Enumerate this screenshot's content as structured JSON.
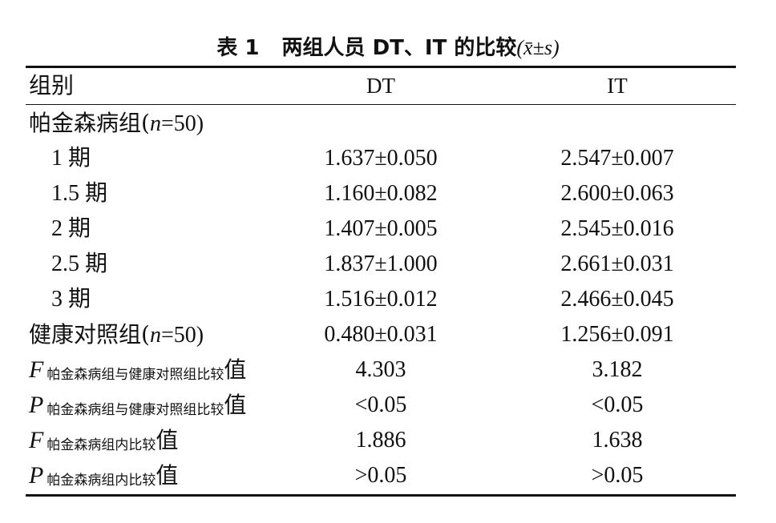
{
  "caption": {
    "number": "表 1",
    "title": "两组人员 DT、IT 的比较",
    "stat": "(x̄±s)"
  },
  "header": {
    "group": "组别",
    "dt": "DT",
    "it": "IT"
  },
  "pd_group": {
    "label_cn": "帕金森病组(",
    "n_var": "n",
    "n_val": "=50)"
  },
  "stages": [
    {
      "label": "1 期",
      "dt": "1.637±0.050",
      "it": "2.547±0.007"
    },
    {
      "label": "1.5 期",
      "dt": "1.160±0.082",
      "it": "2.600±0.063"
    },
    {
      "label": "2 期",
      "dt": "1.407±0.005",
      "it": "2.545±0.016"
    },
    {
      "label": "2.5 期",
      "dt": "1.837±1.000",
      "it": "2.661±0.031"
    },
    {
      "label": "3 期",
      "dt": "1.516±0.012",
      "it": "2.466±0.045"
    }
  ],
  "control": {
    "label_cn": "健康对照组(",
    "n_var": "n",
    "n_val": "=50)",
    "dt": "0.480±0.031",
    "it": "1.256±0.091"
  },
  "stats": [
    {
      "sym": "F",
      "sub": "帕金森病组与健康对照组比较",
      "suffix": "值",
      "dt": "4.303",
      "it": "3.182"
    },
    {
      "sym": "P",
      "sub": "帕金森病组与健康对照组比较",
      "suffix": "值",
      "dt": "<0.05",
      "it": "<0.05"
    },
    {
      "sym": "F",
      "sub": "帕金森病组内比较",
      "suffix": "值",
      "dt": "1.886",
      "it": "1.638"
    },
    {
      "sym": "P",
      "sub": "帕金森病组内比较",
      "suffix": "值",
      "dt": ">0.05",
      "it": ">0.05"
    }
  ]
}
